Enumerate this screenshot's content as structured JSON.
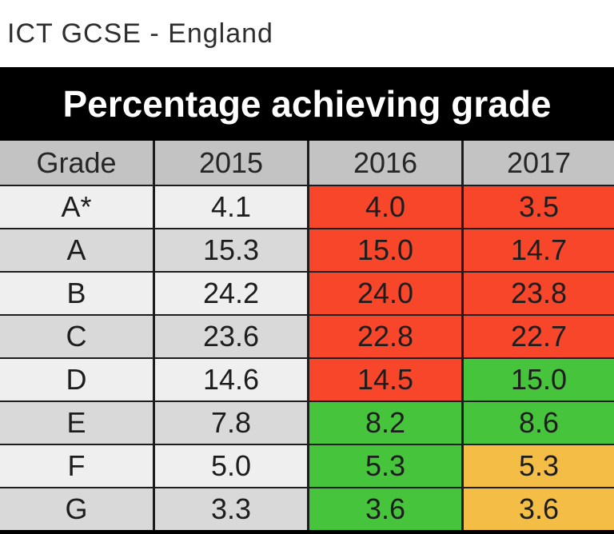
{
  "page": {
    "title": "ICT GCSE - England"
  },
  "table": {
    "title": "Percentage achieving grade",
    "columns": [
      "Grade",
      "2015",
      "2016",
      "2017"
    ],
    "rows": [
      {
        "grade": "A*",
        "values": [
          "4.1",
          "4.0",
          "3.5"
        ],
        "colors": [
          "plain",
          "red",
          "red"
        ]
      },
      {
        "grade": "A",
        "values": [
          "15.3",
          "15.0",
          "14.7"
        ],
        "colors": [
          "plain",
          "red",
          "red"
        ]
      },
      {
        "grade": "B",
        "values": [
          "24.2",
          "24.0",
          "23.8"
        ],
        "colors": [
          "plain",
          "red",
          "red"
        ]
      },
      {
        "grade": "C",
        "values": [
          "23.6",
          "22.8",
          "22.7"
        ],
        "colors": [
          "plain",
          "red",
          "red"
        ]
      },
      {
        "grade": "D",
        "values": [
          "14.6",
          "14.5",
          "15.0"
        ],
        "colors": [
          "plain",
          "red",
          "green"
        ]
      },
      {
        "grade": "E",
        "values": [
          "7.8",
          "8.2",
          "8.6"
        ],
        "colors": [
          "plain",
          "green",
          "green"
        ]
      },
      {
        "grade": "F",
        "values": [
          "5.0",
          "5.3",
          "5.3"
        ],
        "colors": [
          "plain",
          "green",
          "amber"
        ]
      },
      {
        "grade": "G",
        "values": [
          "3.3",
          "3.6",
          "3.6"
        ],
        "colors": [
          "plain",
          "green",
          "amber"
        ]
      }
    ]
  },
  "colors": {
    "red": "#f8462a",
    "green": "#46c43c",
    "amber": "#f4bd45",
    "header_bg": "#c3c3c3",
    "row_light": "#efefef",
    "row_dark": "#d9d9d9",
    "band_bg": "#000000",
    "band_text": "#ffffff",
    "grid_line": "#1c1c1c",
    "text": "#1d1d1d"
  },
  "chart_data": {
    "type": "table",
    "title": "Percentage achieving grade",
    "subtitle": "ICT GCSE - England",
    "columns": [
      "Grade",
      "2015",
      "2016",
      "2017"
    ],
    "rows": [
      [
        "A*",
        4.1,
        4.0,
        3.5
      ],
      [
        "A",
        15.3,
        15.0,
        14.7
      ],
      [
        "B",
        24.2,
        24.0,
        23.8
      ],
      [
        "C",
        23.6,
        22.8,
        22.7
      ],
      [
        "D",
        14.6,
        14.5,
        15.0
      ],
      [
        "E",
        7.8,
        8.2,
        8.6
      ],
      [
        "F",
        5.0,
        5.3,
        5.3
      ],
      [
        "G",
        3.3,
        3.6,
        3.6
      ]
    ],
    "cell_colors_2016": [
      "red",
      "red",
      "red",
      "red",
      "red",
      "green",
      "green",
      "green"
    ],
    "cell_colors_2017": [
      "red",
      "red",
      "red",
      "red",
      "green",
      "green",
      "amber",
      "amber"
    ],
    "layout": "header row on gray band, black title banner above, alternating light/dark gray rows in Grade and 2015 columns"
  }
}
